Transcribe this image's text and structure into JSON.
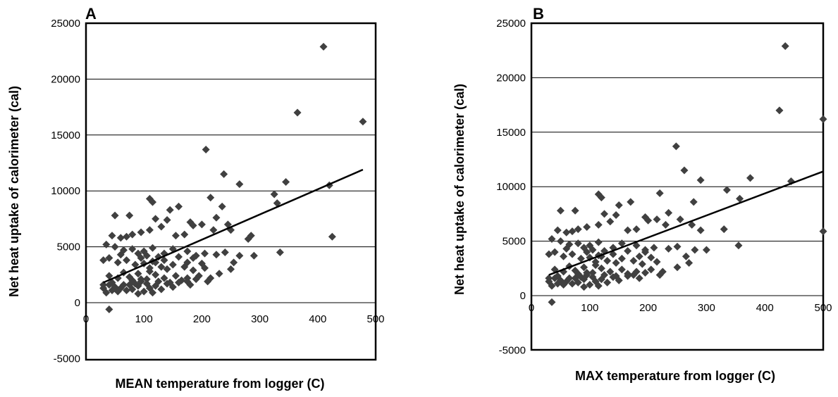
{
  "chart_data": [
    {
      "type": "scatter",
      "panel_label": "A",
      "xlabel": "MEAN temperature from logger (C)",
      "ylabel": "Net heat uptake of calorimeter (cal)",
      "xlim": [
        0,
        500
      ],
      "ylim": [
        -5000,
        25000
      ],
      "xticks": [
        0,
        100,
        200,
        300,
        400,
        500
      ],
      "yticks": [
        -5000,
        0,
        5000,
        10000,
        15000,
        20000,
        25000
      ],
      "grid": "horizontal",
      "marker_color": "#404040",
      "trendline": {
        "x": [
          30,
          478
        ],
        "y": [
          1800,
          11900
        ]
      },
      "points": [
        [
          410,
          22900
        ],
        [
          365,
          17000
        ],
        [
          478,
          16200
        ],
        [
          207,
          13700
        ],
        [
          238,
          11500
        ],
        [
          345,
          10800
        ],
        [
          265,
          10600
        ],
        [
          420,
          10500
        ],
        [
          325,
          9700
        ],
        [
          330,
          8900
        ],
        [
          110,
          9300
        ],
        [
          115,
          9000
        ],
        [
          215,
          9400
        ],
        [
          235,
          8600
        ],
        [
          145,
          8300
        ],
        [
          160,
          8600
        ],
        [
          180,
          7200
        ],
        [
          225,
          7600
        ],
        [
          245,
          7000
        ],
        [
          120,
          7500
        ],
        [
          140,
          7400
        ],
        [
          185,
          6900
        ],
        [
          200,
          7000
        ],
        [
          130,
          6800
        ],
        [
          50,
          7800
        ],
        [
          75,
          7800
        ],
        [
          45,
          6000
        ],
        [
          60,
          5800
        ],
        [
          70,
          5900
        ],
        [
          80,
          6100
        ],
        [
          95,
          6300
        ],
        [
          110,
          6500
        ],
        [
          155,
          6000
        ],
        [
          170,
          6100
        ],
        [
          220,
          6500
        ],
        [
          285,
          6000
        ],
        [
          280,
          5700
        ],
        [
          250,
          6500
        ],
        [
          425,
          5900
        ],
        [
          35,
          5200
        ],
        [
          50,
          5000
        ],
        [
          65,
          4700
        ],
        [
          80,
          4800
        ],
        [
          90,
          4400
        ],
        [
          100,
          4600
        ],
        [
          105,
          4200
        ],
        [
          115,
          4900
        ],
        [
          125,
          4100
        ],
        [
          135,
          4400
        ],
        [
          150,
          4800
        ],
        [
          160,
          4100
        ],
        [
          175,
          4600
        ],
        [
          190,
          4200
        ],
        [
          205,
          4400
        ],
        [
          225,
          4300
        ],
        [
          240,
          4500
        ],
        [
          265,
          4200
        ],
        [
          290,
          4200
        ],
        [
          335,
          4500
        ],
        [
          40,
          4000
        ],
        [
          55,
          3600
        ],
        [
          70,
          3800
        ],
        [
          85,
          3400
        ],
        [
          100,
          3500
        ],
        [
          110,
          3100
        ],
        [
          120,
          3600
        ],
        [
          130,
          3200
        ],
        [
          140,
          3000
        ],
        [
          150,
          3400
        ],
        [
          170,
          3200
        ],
        [
          185,
          2900
        ],
        [
          200,
          3500
        ],
        [
          205,
          3100
        ],
        [
          230,
          2600
        ],
        [
          250,
          3000
        ],
        [
          255,
          3600
        ],
        [
          30,
          3800
        ],
        [
          40,
          2400
        ],
        [
          55,
          2200
        ],
        [
          65,
          2700
        ],
        [
          75,
          2300
        ],
        [
          80,
          2000
        ],
        [
          90,
          2600
        ],
        [
          95,
          1900
        ],
        [
          105,
          2100
        ],
        [
          110,
          2800
        ],
        [
          120,
          2500
        ],
        [
          125,
          1900
        ],
        [
          135,
          2200
        ],
        [
          145,
          1800
        ],
        [
          155,
          2400
        ],
        [
          165,
          2000
        ],
        [
          175,
          1900
        ],
        [
          180,
          1600
        ],
        [
          190,
          2100
        ],
        [
          195,
          2400
        ],
        [
          210,
          1900
        ],
        [
          30,
          1300
        ],
        [
          35,
          900
        ],
        [
          40,
          1600
        ],
        [
          45,
          1100
        ],
        [
          50,
          1400
        ],
        [
          55,
          1000
        ],
        [
          60,
          1300
        ],
        [
          65,
          1600
        ],
        [
          70,
          1100
        ],
        [
          80,
          1200
        ],
        [
          90,
          1500
        ],
        [
          100,
          1000
        ],
        [
          110,
          1300
        ],
        [
          115,
          900
        ],
        [
          120,
          1500
        ],
        [
          130,
          1200
        ],
        [
          140,
          1700
        ],
        [
          150,
          1400
        ],
        [
          160,
          1800
        ],
        [
          175,
          2200
        ],
        [
          40,
          -600
        ],
        [
          85,
          1700
        ],
        [
          95,
          2100
        ],
        [
          105,
          1700
        ],
        [
          60,
          4300
        ],
        [
          95,
          4000
        ],
        [
          115,
          3700
        ],
        [
          135,
          3800
        ],
        [
          175,
          3600
        ],
        [
          185,
          4000
        ],
        [
          215,
          2200
        ],
        [
          45,
          1800
        ],
        [
          75,
          1600
        ],
        [
          90,
          800
        ],
        [
          30,
          1600
        ]
      ]
    },
    {
      "type": "scatter",
      "panel_label": "B",
      "xlabel": "MAX temperature from logger (C)",
      "ylabel": "Net heat uptake of calorimeter (cal)",
      "xlim": [
        0,
        500
      ],
      "ylim": [
        -5000,
        25000
      ],
      "xticks": [
        0,
        100,
        200,
        300,
        400,
        500
      ],
      "yticks": [
        -5000,
        0,
        5000,
        10000,
        15000,
        20000,
        25000
      ],
      "grid": "horizontal",
      "marker_color": "#404040",
      "trendline": {
        "x": [
          30,
          500
        ],
        "y": [
          1900,
          11400
        ]
      },
      "points": [
        [
          435,
          22900
        ],
        [
          425,
          17000
        ],
        [
          500,
          16200
        ],
        [
          248,
          13700
        ],
        [
          262,
          11500
        ],
        [
          375,
          10800
        ],
        [
          290,
          10600
        ],
        [
          445,
          10500
        ],
        [
          335,
          9700
        ],
        [
          357,
          8900
        ],
        [
          115,
          9300
        ],
        [
          120,
          9000
        ],
        [
          220,
          9400
        ],
        [
          278,
          8600
        ],
        [
          150,
          8300
        ],
        [
          170,
          8600
        ],
        [
          195,
          7200
        ],
        [
          235,
          7600
        ],
        [
          255,
          7000
        ],
        [
          125,
          7500
        ],
        [
          145,
          7400
        ],
        [
          200,
          6900
        ],
        [
          215,
          7000
        ],
        [
          135,
          6800
        ],
        [
          50,
          7800
        ],
        [
          75,
          7800
        ],
        [
          45,
          6000
        ],
        [
          60,
          5800
        ],
        [
          70,
          5900
        ],
        [
          80,
          6100
        ],
        [
          95,
          6300
        ],
        [
          115,
          6500
        ],
        [
          165,
          6000
        ],
        [
          180,
          6100
        ],
        [
          230,
          6500
        ],
        [
          290,
          6000
        ],
        [
          330,
          6100
        ],
        [
          275,
          6500
        ],
        [
          500,
          5900
        ],
        [
          35,
          5200
        ],
        [
          50,
          5000
        ],
        [
          65,
          4700
        ],
        [
          80,
          4800
        ],
        [
          90,
          4400
        ],
        [
          100,
          4600
        ],
        [
          105,
          4200
        ],
        [
          115,
          4900
        ],
        [
          125,
          4100
        ],
        [
          140,
          4400
        ],
        [
          155,
          4800
        ],
        [
          165,
          4100
        ],
        [
          180,
          4600
        ],
        [
          195,
          4200
        ],
        [
          210,
          4400
        ],
        [
          235,
          4300
        ],
        [
          250,
          4500
        ],
        [
          280,
          4200
        ],
        [
          300,
          4200
        ],
        [
          355,
          4600
        ],
        [
          40,
          4000
        ],
        [
          55,
          3600
        ],
        [
          70,
          3800
        ],
        [
          85,
          3400
        ],
        [
          100,
          3500
        ],
        [
          110,
          3100
        ],
        [
          120,
          3600
        ],
        [
          130,
          3200
        ],
        [
          145,
          3000
        ],
        [
          155,
          3400
        ],
        [
          175,
          3200
        ],
        [
          190,
          2900
        ],
        [
          205,
          3500
        ],
        [
          215,
          3100
        ],
        [
          250,
          2600
        ],
        [
          270,
          3000
        ],
        [
          265,
          3600
        ],
        [
          30,
          3800
        ],
        [
          40,
          2400
        ],
        [
          55,
          2200
        ],
        [
          65,
          2700
        ],
        [
          75,
          2300
        ],
        [
          80,
          2000
        ],
        [
          90,
          2600
        ],
        [
          95,
          1900
        ],
        [
          105,
          2100
        ],
        [
          110,
          2800
        ],
        [
          120,
          2500
        ],
        [
          125,
          1900
        ],
        [
          135,
          2200
        ],
        [
          145,
          1800
        ],
        [
          155,
          2400
        ],
        [
          165,
          2000
        ],
        [
          175,
          1900
        ],
        [
          185,
          1600
        ],
        [
          195,
          2100
        ],
        [
          205,
          2400
        ],
        [
          220,
          1900
        ],
        [
          30,
          1300
        ],
        [
          35,
          900
        ],
        [
          40,
          1600
        ],
        [
          45,
          1100
        ],
        [
          50,
          1400
        ],
        [
          55,
          1000
        ],
        [
          60,
          1300
        ],
        [
          65,
          1600
        ],
        [
          70,
          1100
        ],
        [
          80,
          1200
        ],
        [
          90,
          1500
        ],
        [
          100,
          1000
        ],
        [
          110,
          1300
        ],
        [
          115,
          900
        ],
        [
          120,
          1500
        ],
        [
          130,
          1200
        ],
        [
          140,
          1700
        ],
        [
          150,
          1400
        ],
        [
          165,
          1800
        ],
        [
          180,
          2200
        ],
        [
          35,
          -600
        ],
        [
          85,
          1700
        ],
        [
          95,
          2100
        ],
        [
          105,
          1700
        ],
        [
          60,
          4300
        ],
        [
          95,
          4000
        ],
        [
          115,
          3700
        ],
        [
          140,
          3800
        ],
        [
          185,
          3600
        ],
        [
          195,
          4000
        ],
        [
          225,
          2200
        ],
        [
          45,
          1800
        ],
        [
          75,
          1600
        ],
        [
          90,
          800
        ],
        [
          30,
          1600
        ]
      ]
    }
  ]
}
